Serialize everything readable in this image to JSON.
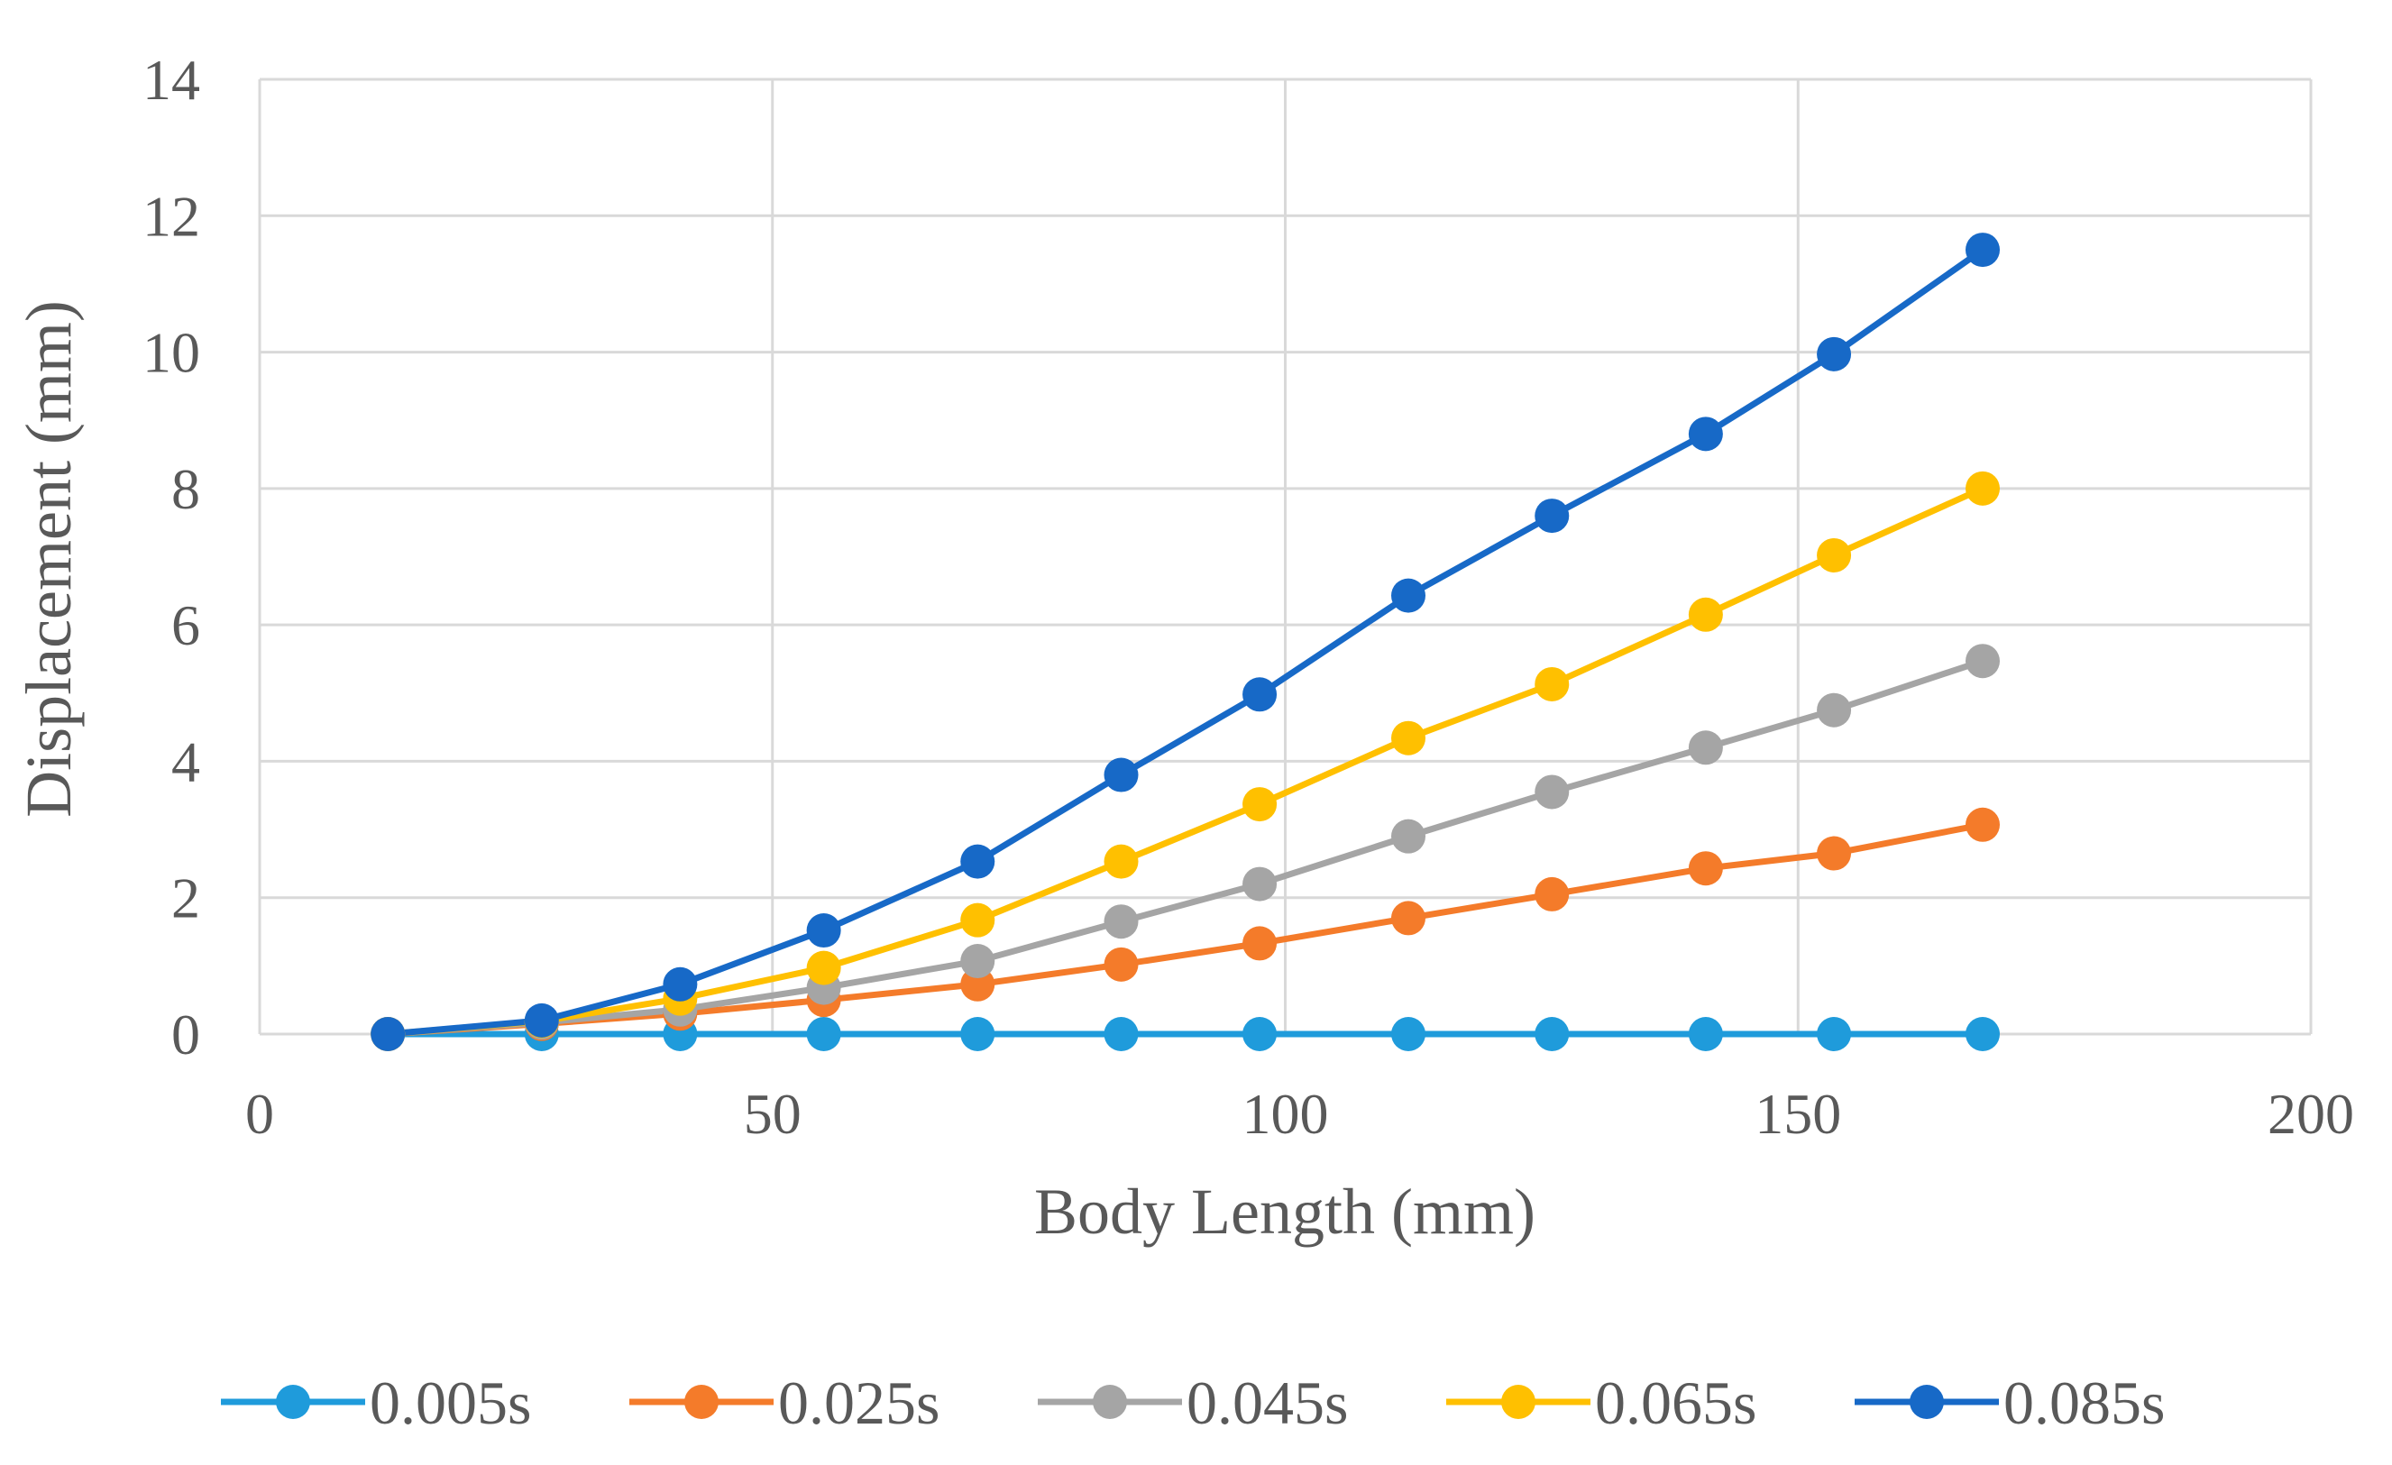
{
  "chart_data": {
    "type": "line",
    "title": "",
    "xlabel": "Body Length  (mm)",
    "ylabel": "Displacement (mm)",
    "xlim": [
      0,
      200
    ],
    "ylim": [
      0,
      14
    ],
    "xticks": [
      0,
      50,
      100,
      150,
      200
    ],
    "yticks": [
      0,
      2,
      4,
      6,
      8,
      10,
      12,
      14
    ],
    "grid": true,
    "legend_position": "bottom",
    "x": [
      12.5,
      27.5,
      41,
      55,
      70,
      84,
      97.5,
      112,
      126,
      141,
      153.5,
      168
    ],
    "series": [
      {
        "name": "0.005s",
        "color": "#1F9BDB",
        "values": [
          0,
          0,
          0,
          0,
          0,
          0,
          0,
          0,
          0,
          0,
          0,
          0
        ]
      },
      {
        "name": "0.025s",
        "color": "#F47B2A",
        "values": [
          0,
          0.15,
          0.3,
          0.5,
          0.73,
          1.02,
          1.33,
          1.7,
          2.05,
          2.43,
          2.65,
          3.07
        ]
      },
      {
        "name": "0.045s",
        "color": "#A5A5A5",
        "values": [
          0,
          0.17,
          0.36,
          0.68,
          1.07,
          1.65,
          2.2,
          2.9,
          3.55,
          4.2,
          4.75,
          5.47
        ]
      },
      {
        "name": "0.065s",
        "color": "#FFC000",
        "values": [
          0,
          0.19,
          0.52,
          0.97,
          1.67,
          2.53,
          3.37,
          4.34,
          5.13,
          6.15,
          7.02,
          8.0
        ]
      },
      {
        "name": "0.085s",
        "color": "#1769C7",
        "values": [
          0,
          0.2,
          0.73,
          1.52,
          2.53,
          3.8,
          4.98,
          6.43,
          7.6,
          8.8,
          9.97,
          11.5
        ]
      }
    ]
  }
}
